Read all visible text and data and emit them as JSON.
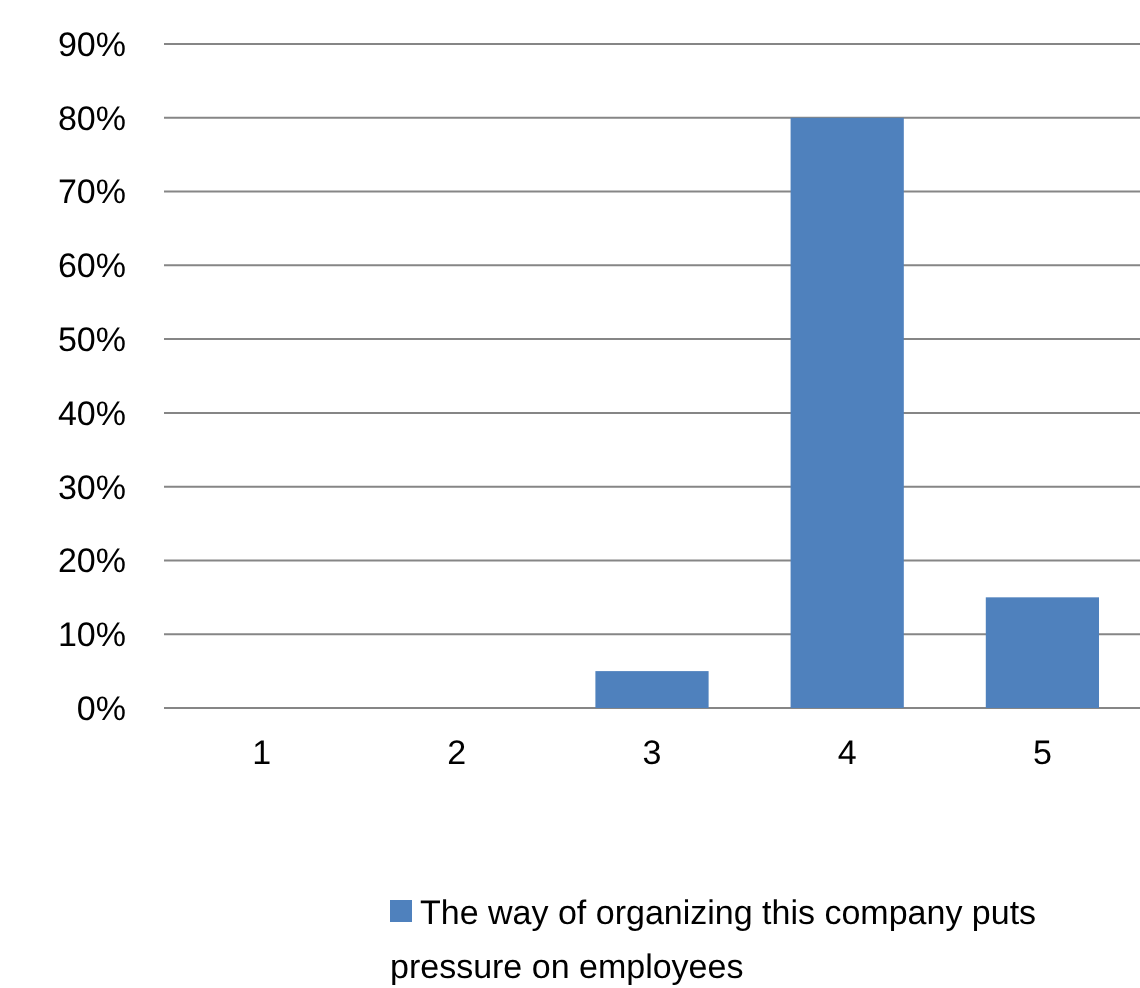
{
  "chart_data": {
    "type": "bar",
    "categories": [
      "1",
      "2",
      "3",
      "4",
      "5"
    ],
    "series": [
      {
        "name": "The way of organizing this company puts pressure on employees",
        "color": "#4f81bd",
        "values": [
          0,
          0,
          5,
          80,
          15
        ]
      }
    ],
    "ylim": [
      0,
      90
    ],
    "yticks": [
      {
        "value": 0,
        "label": "0%"
      },
      {
        "value": 10,
        "label": "10%"
      },
      {
        "value": 20,
        "label": "20%"
      },
      {
        "value": 30,
        "label": "30%"
      },
      {
        "value": 40,
        "label": "40%"
      },
      {
        "value": 50,
        "label": "50%"
      },
      {
        "value": 60,
        "label": "60%"
      },
      {
        "value": 70,
        "label": "70%"
      },
      {
        "value": 80,
        "label": "80%"
      },
      {
        "value": 90,
        "label": "90%"
      }
    ],
    "grid": "y",
    "legend": "bottom"
  }
}
